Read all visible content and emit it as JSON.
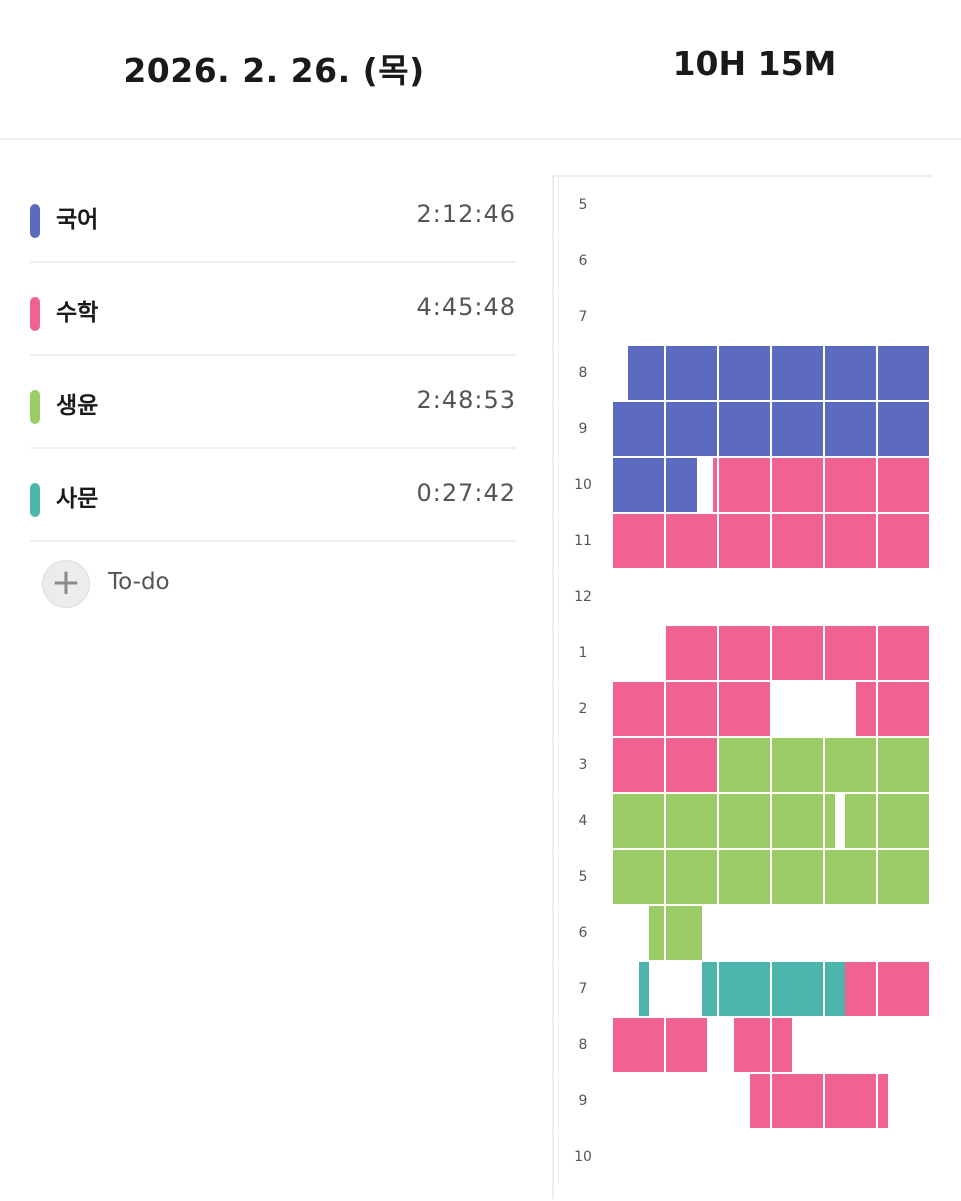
{
  "header": {
    "date": "2026. 2. 26. (목)",
    "total": "10H 15M"
  },
  "subjects": [
    {
      "name": "국어",
      "time": "2:12:46",
      "color": "#5c6bc0"
    },
    {
      "name": "수학",
      "time": "4:45:48",
      "color": "#f06292"
    },
    {
      "name": "생윤",
      "time": "2:48:53",
      "color": "#9ccc65"
    },
    {
      "name": "사문",
      "time": "0:27:42",
      "color": "#4db6ac"
    }
  ],
  "todo": {
    "label": "To-do",
    "icon": "plus-icon"
  },
  "timeline": {
    "hours": [
      "5",
      "6",
      "7",
      "8",
      "9",
      "10",
      "11",
      "12",
      "1",
      "2",
      "3",
      "4",
      "5",
      "6",
      "7",
      "8",
      "9",
      "10"
    ],
    "blocks": [
      {
        "hour": 3,
        "start": 3,
        "end": 60,
        "subject": 0
      },
      {
        "hour": 4,
        "start": 0,
        "end": 60,
        "subject": 0
      },
      {
        "hour": 5,
        "start": 0,
        "end": 16,
        "subject": 0
      },
      {
        "hour": 5,
        "start": 19,
        "end": 60,
        "subject": 1
      },
      {
        "hour": 6,
        "start": 0,
        "end": 60,
        "subject": 1
      },
      {
        "hour": 8,
        "start": 10,
        "end": 60,
        "subject": 1
      },
      {
        "hour": 9,
        "start": 0,
        "end": 30,
        "subject": 1
      },
      {
        "hour": 9,
        "start": 46,
        "end": 60,
        "subject": 1
      },
      {
        "hour": 10,
        "start": 0,
        "end": 20,
        "subject": 1
      },
      {
        "hour": 10,
        "start": 20,
        "end": 60,
        "subject": 2
      },
      {
        "hour": 11,
        "start": 0,
        "end": 42,
        "subject": 2
      },
      {
        "hour": 11,
        "start": 44,
        "end": 60,
        "subject": 2
      },
      {
        "hour": 12,
        "start": 0,
        "end": 60,
        "subject": 2
      },
      {
        "hour": 13,
        "start": 7,
        "end": 17,
        "subject": 2
      },
      {
        "hour": 14,
        "start": 5,
        "end": 7,
        "subject": 3
      },
      {
        "hour": 14,
        "start": 17,
        "end": 44,
        "subject": 3
      },
      {
        "hour": 14,
        "start": 44,
        "end": 60,
        "subject": 1
      },
      {
        "hour": 15,
        "start": 0,
        "end": 18,
        "subject": 1
      },
      {
        "hour": 15,
        "start": 23,
        "end": 34,
        "subject": 1
      },
      {
        "hour": 16,
        "start": 26,
        "end": 52,
        "subject": 1
      }
    ]
  }
}
